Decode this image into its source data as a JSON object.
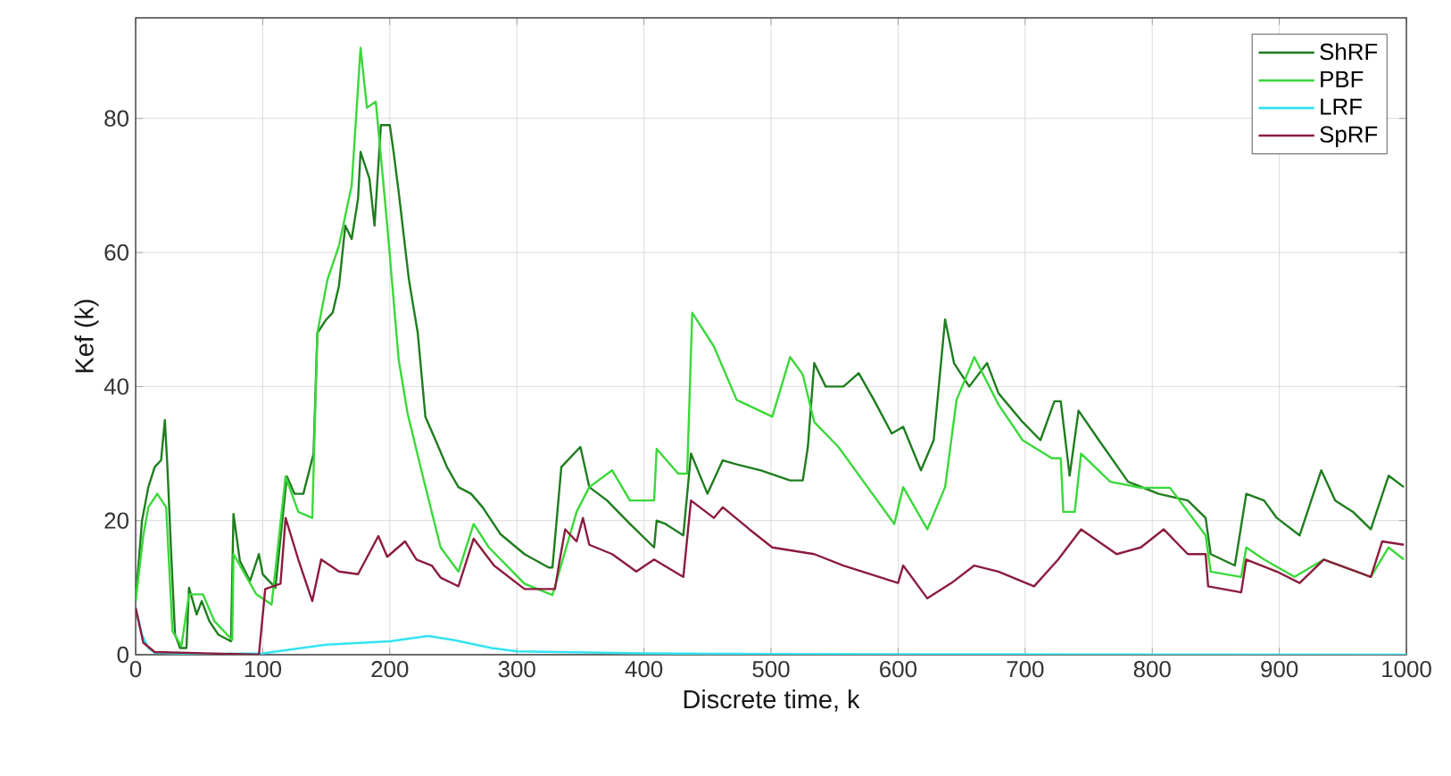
{
  "chart_data": {
    "type": "line",
    "xlabel": "Discrete time, k",
    "ylabel": "Kef (k)",
    "xlim": [
      0,
      1000
    ],
    "ylim": [
      0,
      95
    ],
    "xticks": [
      0,
      100,
      200,
      300,
      400,
      500,
      600,
      700,
      800,
      900,
      1000
    ],
    "yticks": [
      0,
      20,
      40,
      60,
      80
    ],
    "grid": true,
    "legend": "top right",
    "line_style": "solid",
    "series": [
      {
        "name": "ShRF",
        "color": "#1e7d1e",
        "x": [
          0,
          5,
          10,
          15,
          20,
          23,
          25,
          28,
          31,
          35,
          40,
          42,
          48,
          52,
          58,
          65,
          75,
          77,
          82,
          90,
          97,
          100,
          110,
          119,
          125,
          132,
          140,
          143,
          150,
          155,
          160,
          165,
          170,
          175,
          177,
          184,
          188,
          193,
          200,
          203,
          207,
          215,
          222,
          228,
          236,
          245,
          254,
          264,
          273,
          287,
          306,
          325,
          328,
          335,
          350,
          357,
          371,
          389,
          408,
          410,
          417,
          431,
          437,
          450,
          462,
          473,
          492,
          515,
          525,
          529,
          534,
          543,
          557,
          569,
          581,
          595,
          604,
          618,
          628,
          637,
          644,
          656,
          670,
          679,
          698,
          712,
          723,
          728,
          735,
          742,
          758,
          781,
          805,
          828,
          842,
          846,
          865,
          874,
          888,
          898,
          916,
          933,
          944,
          958,
          972,
          986,
          998
        ],
        "values": [
          8,
          20,
          25,
          28,
          29,
          35,
          28,
          15,
          3,
          1,
          1,
          10,
          6,
          8,
          5,
          3,
          2,
          21,
          14,
          11,
          15,
          12,
          10,
          26.6,
          24,
          24,
          30,
          48,
          50,
          51,
          55,
          64,
          62,
          68,
          75,
          71,
          64,
          79,
          79,
          75,
          69,
          56,
          48,
          35.5,
          32,
          28,
          25,
          24,
          22,
          18,
          15,
          13,
          13,
          28,
          31,
          25,
          23,
          19.5,
          16,
          20,
          19.5,
          17.8,
          30,
          24,
          29,
          28.4,
          27.5,
          26,
          26,
          31,
          43.5,
          40,
          40,
          42,
          38,
          33,
          34,
          27.5,
          32,
          50,
          43.5,
          40,
          43.5,
          39,
          34.7,
          32,
          37.8,
          37.8,
          26.7,
          36.4,
          32,
          25.8,
          24,
          23,
          20.4,
          15,
          13.3,
          24,
          23,
          20.4,
          17.8,
          27.5,
          23,
          21.3,
          18.7,
          26.7,
          25
        ]
      },
      {
        "name": "PBF",
        "color": "#3ad83a",
        "x": [
          0,
          6,
          10,
          17,
          24,
          29,
          36,
          42,
          53,
          62,
          76,
          77,
          95,
          107,
          118,
          128,
          139,
          143,
          151,
          160,
          170,
          177,
          182,
          189,
          198,
          207,
          214,
          226,
          240,
          254,
          266,
          278,
          306,
          328,
          347,
          357,
          375,
          389,
          408,
          410,
          427,
          434,
          438,
          455,
          473,
          501,
          515,
          525,
          534,
          553,
          576,
          597,
          604,
          623,
          637,
          646,
          660,
          679,
          698,
          721,
          728,
          730,
          739,
          744,
          767,
          791,
          814,
          842,
          846,
          870,
          874,
          888,
          912,
          935,
          972,
          986,
          998
        ],
        "values": [
          8,
          17.7,
          22,
          24,
          22,
          3.5,
          1.3,
          9,
          9,
          5,
          2.2,
          15,
          9,
          7.5,
          26.6,
          21.3,
          20.4,
          48,
          56,
          61,
          70,
          90.5,
          81.6,
          82.5,
          64,
          44,
          36,
          26.6,
          16,
          12.4,
          19.5,
          16,
          10.6,
          8.9,
          21.3,
          25,
          27.5,
          23,
          23,
          30.7,
          27,
          27,
          51,
          46,
          38,
          35.5,
          44.4,
          41.8,
          34.7,
          31,
          25,
          19.5,
          25,
          18.7,
          25,
          38,
          44.4,
          37.3,
          32,
          29.3,
          29.3,
          21.3,
          21.3,
          30,
          25.8,
          24.9,
          24.9,
          17.8,
          12.4,
          11.6,
          16,
          14.2,
          11.6,
          14.2,
          11.6,
          16,
          14.2
        ]
      },
      {
        "name": "LRF",
        "color": "#33e3f0",
        "x": [
          0,
          5,
          10,
          15,
          50,
          100,
          150,
          200,
          230,
          250,
          280,
          300,
          400,
          500,
          1000
        ],
        "values": [
          7,
          3,
          1,
          0.3,
          0.1,
          0.2,
          1.5,
          2,
          2.8,
          2.2,
          1,
          0.5,
          0.2,
          0.1,
          0
        ]
      },
      {
        "name": "SpRF",
        "color": "#8b1c3c",
        "x": [
          0,
          6,
          15,
          97,
          102,
          114,
          118,
          128,
          139,
          146,
          160,
          175,
          191,
          198,
          212,
          221,
          233,
          240,
          254,
          266,
          282,
          306,
          330,
          333,
          338,
          347,
          352,
          357,
          375,
          394,
          408,
          431,
          437,
          455,
          462,
          483,
          501,
          534,
          557,
          600,
          604,
          623,
          642,
          660,
          679,
          707,
          726,
          744,
          772,
          791,
          809,
          828,
          842,
          844,
          870,
          874,
          898,
          916,
          935,
          972,
          981,
          998
        ],
        "values": [
          7,
          1.8,
          0.4,
          0,
          9.8,
          10.6,
          20.4,
          14.2,
          8,
          14.2,
          12.4,
          12,
          17.7,
          14.6,
          16.9,
          14.2,
          13.3,
          11.5,
          10.2,
          17.3,
          13.3,
          9.8,
          9.8,
          13.3,
          18.7,
          16.9,
          20.4,
          16.4,
          15,
          12.4,
          14.2,
          11.6,
          23,
          20.4,
          22,
          18.7,
          16,
          15,
          13.3,
          10.7,
          13.3,
          8.4,
          10.7,
          13.3,
          12.4,
          10.2,
          14.2,
          18.7,
          15,
          16,
          18.7,
          15,
          15,
          10.2,
          9.3,
          14.2,
          12.4,
          10.7,
          14.2,
          11.6,
          16.9,
          16.4
        ]
      }
    ]
  }
}
